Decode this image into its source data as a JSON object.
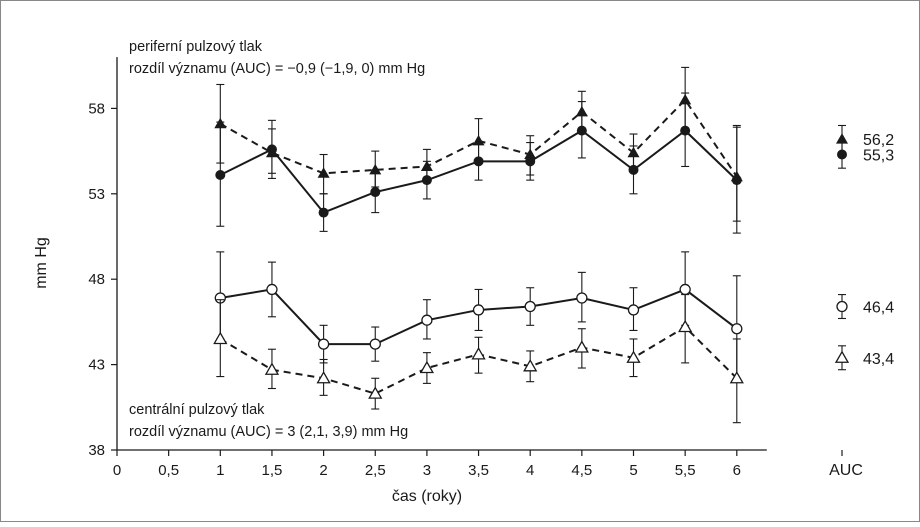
{
  "chart_data": {
    "type": "line",
    "xlabel": "čas (roky)",
    "ylabel": "mm Hg",
    "xlim": [
      0,
      6
    ],
    "ylim": [
      38,
      61
    ],
    "x_ticks": [
      "0",
      "0,5",
      "1",
      "1,5",
      "2",
      "2,5",
      "3",
      "3,5",
      "4",
      "4,5",
      "5",
      "5,5",
      "6"
    ],
    "y_ticks": [
      "38",
      "43",
      "48",
      "53",
      "58"
    ],
    "auc_tick_label": "AUC",
    "x": [
      1,
      1.5,
      2,
      2.5,
      3,
      3.5,
      4,
      4.5,
      5,
      5.5,
      6
    ],
    "series": [
      {
        "marker": "filled-triangle",
        "line": "dashed",
        "values": [
          57.1,
          55.4,
          54.2,
          54.4,
          54.6,
          56.1,
          55.3,
          57.8,
          55.4,
          58.5,
          54.0
        ],
        "err_low": [
          54.8,
          54.2,
          53.0,
          53.4,
          53.7,
          54.9,
          54.1,
          56.6,
          54.3,
          56.7,
          51.4
        ],
        "err_high": [
          59.4,
          56.8,
          55.3,
          55.5,
          55.6,
          57.4,
          56.4,
          59.0,
          56.5,
          60.4,
          56.9
        ],
        "auc": 56.2,
        "auc_label": "56,2",
        "auc_err": [
          55.4,
          57.0
        ]
      },
      {
        "marker": "filled-circle",
        "line": "solid",
        "values": [
          54.1,
          55.6,
          51.9,
          53.1,
          53.8,
          54.9,
          54.9,
          56.7,
          54.4,
          56.7,
          53.8
        ],
        "err_low": [
          51.1,
          53.9,
          50.8,
          51.9,
          52.7,
          53.8,
          53.8,
          55.1,
          53.0,
          54.6,
          50.7
        ],
        "err_high": [
          57.2,
          57.3,
          53.0,
          54.3,
          54.9,
          56.0,
          56.0,
          58.4,
          55.8,
          58.9,
          57.0
        ],
        "auc": 55.3,
        "auc_label": "55,3",
        "auc_err": [
          54.5,
          56.0
        ]
      },
      {
        "marker": "open-circle",
        "line": "solid",
        "values": [
          46.9,
          47.4,
          44.2,
          44.2,
          45.6,
          46.2,
          46.4,
          46.9,
          46.2,
          47.4,
          45.1
        ],
        "err_low": [
          44.5,
          45.8,
          43.1,
          43.2,
          44.5,
          45.0,
          45.3,
          45.5,
          45.0,
          45.3,
          42.0
        ],
        "err_high": [
          49.6,
          49.0,
          45.3,
          45.2,
          46.8,
          47.4,
          47.5,
          48.4,
          47.5,
          49.6,
          48.2
        ],
        "auc": 46.4,
        "auc_label": "46,4",
        "auc_err": [
          45.7,
          47.1
        ]
      },
      {
        "marker": "open-triangle",
        "line": "dashed",
        "values": [
          44.5,
          42.7,
          42.2,
          41.3,
          42.8,
          43.6,
          42.9,
          44.0,
          43.4,
          45.2,
          42.2
        ],
        "err_low": [
          42.3,
          41.6,
          41.2,
          40.4,
          41.9,
          42.5,
          42.0,
          42.8,
          42.3,
          43.1,
          39.6
        ],
        "err_high": [
          46.8,
          43.9,
          43.3,
          42.2,
          43.7,
          44.6,
          43.8,
          45.1,
          44.5,
          47.1,
          44.5
        ],
        "auc": 43.4,
        "auc_label": "43,4",
        "auc_err": [
          42.7,
          44.1
        ]
      }
    ],
    "annotations": {
      "top_line1": "periferní pulzový tlak",
      "top_line2": "rozdíl významu (AUC) = −0,9 (−1,9, 0) mm Hg",
      "bottom_line1": "centrální pulzový tlak",
      "bottom_line2": "rozdíl významu (AUC) = 3 (2,1, 3,9) mm Hg"
    }
  }
}
